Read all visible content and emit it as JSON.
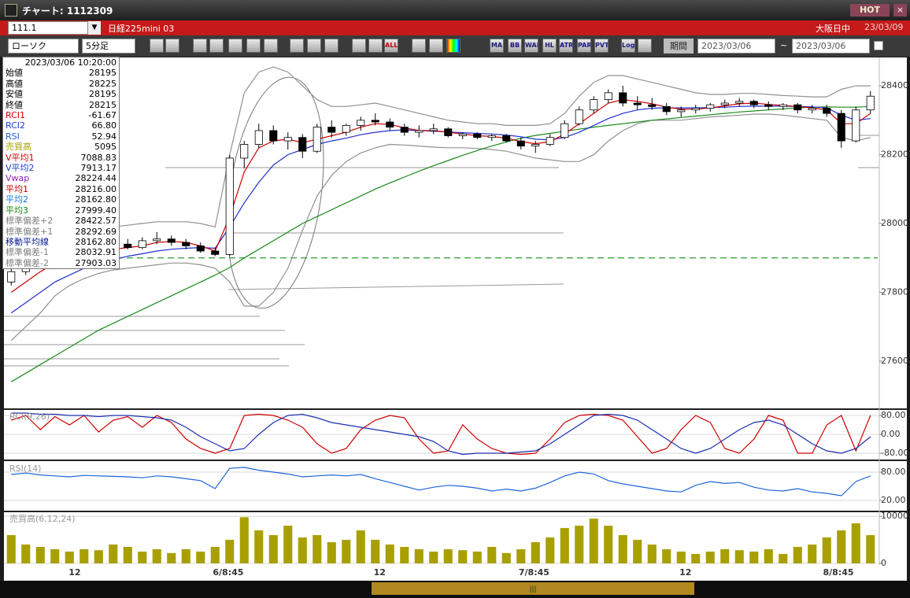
{
  "window": {
    "title": "チャート: 1112309",
    "hot": "HOT",
    "code": "111.1",
    "name": "日経225mini 03",
    "market": "大阪日中",
    "date": "23/03/09"
  },
  "toolbar": {
    "chart_style": "ローソク",
    "interval": "5分足",
    "buttons": [
      "ALL",
      "MA",
      "BB",
      "WAE",
      "HL",
      "ATR",
      "PARA",
      "PVT",
      "Log"
    ],
    "period": "期間",
    "from": "2023/03/06",
    "tilde": "~",
    "to": "2023/03/06"
  },
  "info_panel": {
    "datetime": "2023/03/06  10:20:00",
    "rows": [
      {
        "label": "始値",
        "value": "28195",
        "color": "#000000"
      },
      {
        "label": "高値",
        "value": "28225",
        "color": "#000000"
      },
      {
        "label": "安値",
        "value": "28195",
        "color": "#000000"
      },
      {
        "label": "終値",
        "value": "28215",
        "color": "#000000"
      },
      {
        "label": "RCI1",
        "value": "-61.67",
        "color": "#d00000"
      },
      {
        "label": "RCI2",
        "value": "66.80",
        "color": "#1a3fd0"
      },
      {
        "label": "RSI",
        "value": "52.94",
        "color": "#1e64dc"
      },
      {
        "label": "売買高",
        "value": "5095",
        "color": "#a8a000"
      },
      {
        "label": "V平均1",
        "value": "7088.83",
        "color": "#d00000"
      },
      {
        "label": "V平均2",
        "value": "7913.17",
        "color": "#1a3fd0"
      },
      {
        "label": "Vwap",
        "value": "28224.44",
        "color": "#9020c0"
      },
      {
        "label": "平均1",
        "value": "28216.00",
        "color": "#d00000"
      },
      {
        "label": "平均2",
        "value": "28162.80",
        "color": "#1e78dc"
      },
      {
        "label": "平均3",
        "value": "27999.40",
        "color": "#1a8a1a"
      },
      {
        "label": "標準偏差+2",
        "value": "28422.57",
        "color": "#808080"
      },
      {
        "label": "標準偏差+1",
        "value": "28292.69",
        "color": "#808080"
      },
      {
        "label": "移動平均線",
        "value": "28162.80",
        "color": "#0a1a90"
      },
      {
        "label": "標準偏差-1",
        "value": "28032.91",
        "color": "#808080"
      },
      {
        "label": "標準偏差-2",
        "value": "27903.03",
        "color": "#808080"
      }
    ]
  },
  "chart_data": [
    {
      "type": "candlestick",
      "ylim": [
        27465,
        28478
      ],
      "yticks": [
        28400,
        28200,
        28000,
        27800,
        27600
      ],
      "xticks": [
        {
          "value": 4.36,
          "label": "12"
        },
        {
          "value": 14.9,
          "label": "6/8:45"
        },
        {
          "value": 25.3,
          "label": "12"
        },
        {
          "value": 35.9,
          "label": "7/8:45"
        },
        {
          "value": 46.3,
          "label": "12"
        },
        {
          "value": 56.8,
          "label": "8/8:45"
        }
      ],
      "ohlc": [
        [
          27830,
          27870,
          27820,
          27860
        ],
        [
          27860,
          27890,
          27850,
          27880
        ],
        [
          27880,
          27920,
          27870,
          27910
        ],
        [
          27910,
          27930,
          27900,
          27920
        ],
        [
          27920,
          27940,
          27905,
          27915
        ],
        [
          27915,
          27935,
          27900,
          27930
        ],
        [
          27930,
          27950,
          27920,
          27925
        ],
        [
          27925,
          27945,
          27915,
          27940
        ],
        [
          27940,
          27955,
          27925,
          27930
        ],
        [
          27930,
          27960,
          27925,
          27950
        ],
        [
          27950,
          27975,
          27940,
          27955
        ],
        [
          27955,
          27965,
          27935,
          27945
        ],
        [
          27945,
          27955,
          27925,
          27935
        ],
        [
          27935,
          27945,
          27915,
          27920
        ],
        [
          27920,
          27930,
          27905,
          27910
        ],
        [
          27910,
          28200,
          27905,
          28190
        ],
        [
          28190,
          28240,
          28160,
          28230
        ],
        [
          28230,
          28290,
          28220,
          28270
        ],
        [
          28270,
          28285,
          28230,
          28240
        ],
        [
          28240,
          28265,
          28215,
          28250
        ],
        [
          28250,
          28260,
          28190,
          28210
        ],
        [
          28210,
          28290,
          28205,
          28280
        ],
        [
          28280,
          28300,
          28250,
          28265
        ],
        [
          28265,
          28290,
          28255,
          28285
        ],
        [
          28285,
          28310,
          28270,
          28300
        ],
        [
          28300,
          28320,
          28285,
          28295
        ],
        [
          28295,
          28305,
          28270,
          28280
        ],
        [
          28280,
          28290,
          28255,
          28265
        ],
        [
          28265,
          28285,
          28250,
          28270
        ],
        [
          28270,
          28290,
          28260,
          28275
        ],
        [
          28275,
          28280,
          28250,
          28255
        ],
        [
          28255,
          28265,
          28245,
          28260
        ],
        [
          28260,
          28265,
          28245,
          28250
        ],
        [
          28250,
          28260,
          28240,
          28255
        ],
        [
          28255,
          28260,
          28235,
          28240
        ],
        [
          28240,
          28250,
          28215,
          28225
        ],
        [
          28225,
          28240,
          28205,
          28230
        ],
        [
          28230,
          28260,
          28225,
          28250
        ],
        [
          28250,
          28300,
          28245,
          28290
        ],
        [
          28290,
          28340,
          28285,
          28330
        ],
        [
          28330,
          28370,
          28320,
          28360
        ],
        [
          28360,
          28390,
          28350,
          28380
        ],
        [
          28380,
          28400,
          28340,
          28350
        ],
        [
          28350,
          28370,
          28330,
          28345
        ],
        [
          28345,
          28365,
          28330,
          28340
        ],
        [
          28340,
          28350,
          28315,
          28325
        ],
        [
          28325,
          28340,
          28310,
          28330
        ],
        [
          28330,
          28345,
          28320,
          28335
        ],
        [
          28335,
          28350,
          28325,
          28345
        ],
        [
          28345,
          28360,
          28335,
          28350
        ],
        [
          28350,
          28365,
          28340,
          28355
        ],
        [
          28355,
          28360,
          28335,
          28345
        ],
        [
          28345,
          28355,
          28330,
          28340
        ],
        [
          28340,
          28350,
          28330,
          28345
        ],
        [
          28345,
          28350,
          28320,
          28330
        ],
        [
          28330,
          28345,
          28320,
          28335
        ],
        [
          28335,
          28345,
          28310,
          28320
        ],
        [
          28320,
          28330,
          28220,
          28240
        ],
        [
          28240,
          28340,
          28235,
          28330
        ],
        [
          28330,
          28385,
          28320,
          28370
        ]
      ],
      "series": [
        {
          "color": "#909090",
          "values": [
            27920,
            27950,
            27975,
            27990,
            27990,
            27990,
            27990,
            27990,
            27995,
            28000,
            28005,
            28005,
            28005,
            28000,
            27990,
            28200,
            28380,
            28440,
            28455,
            28440,
            28400,
            28360,
            28340,
            28340,
            28345,
            28350,
            28340,
            28330,
            28320,
            28310,
            28300,
            28295,
            28290,
            28290,
            28285,
            28285,
            28285,
            28290,
            28320,
            28370,
            28410,
            28430,
            28430,
            28420,
            28410,
            28400,
            28390,
            28380,
            28375,
            28375,
            28378,
            28378,
            28375,
            28372,
            28370,
            28368,
            28368,
            28390,
            28400,
            28400
          ]
        },
        {
          "color": "#909090",
          "values": [
            27660,
            27700,
            27740,
            27790,
            27820,
            27840,
            27855,
            27865,
            27870,
            27875,
            27880,
            27885,
            27885,
            27880,
            27870,
            27830,
            27760,
            27760,
            27800,
            27870,
            27980,
            28080,
            28140,
            28180,
            28205,
            28220,
            28230,
            28228,
            28225,
            28222,
            28220,
            28220,
            28218,
            28215,
            28210,
            28200,
            28190,
            28185,
            28180,
            28180,
            28200,
            28240,
            28270,
            28290,
            28300,
            28300,
            28300,
            28305,
            28310,
            28312,
            28315,
            28318,
            28318,
            28315,
            28310,
            28305,
            28300,
            28250,
            28240,
            28250
          ]
        },
        {
          "color": "#1a8a1a",
          "values": [
            27540,
            27565,
            27590,
            27615,
            27640,
            27665,
            27690,
            27710,
            27730,
            27750,
            27770,
            27790,
            27810,
            27830,
            27850,
            27872,
            27900,
            27925,
            27950,
            27975,
            28000,
            28020,
            28040,
            28060,
            28080,
            28100,
            28118,
            28135,
            28152,
            28168,
            28183,
            28198,
            28212,
            28225,
            28237,
            28248,
            28256,
            28262,
            28268,
            28274,
            28280,
            28285,
            28290,
            28295,
            28300,
            28304,
            28308,
            28312,
            28316,
            28320,
            28324,
            28327,
            28330,
            28333,
            28336,
            28338,
            28339,
            28338,
            28338,
            28340
          ]
        },
        {
          "color": "#2030d0",
          "values": [
            27740,
            27770,
            27800,
            27830,
            27850,
            27870,
            27885,
            27895,
            27905,
            27912,
            27920,
            27925,
            27928,
            27930,
            27928,
            27990,
            28060,
            28120,
            28170,
            28200,
            28215,
            28230,
            28240,
            28248,
            28258,
            28265,
            28270,
            28272,
            28270,
            28268,
            28266,
            28264,
            28262,
            28260,
            28257,
            28252,
            28245,
            28243,
            28250,
            28265,
            28285,
            28305,
            28320,
            28330,
            28335,
            28336,
            28336,
            28336,
            28337,
            28338,
            28340,
            28341,
            28341,
            28341,
            28340,
            28339,
            28336,
            28315,
            28300,
            28305
          ]
        },
        {
          "color": "#d00000",
          "values": [
            27800,
            27830,
            27860,
            27885,
            27900,
            27910,
            27915,
            27925,
            27930,
            27935,
            27945,
            27948,
            27945,
            27935,
            27920,
            28020,
            28150,
            28220,
            28240,
            28245,
            28235,
            28245,
            28255,
            28265,
            28280,
            28290,
            28288,
            28278,
            28270,
            28270,
            28265,
            28260,
            28255,
            28253,
            28248,
            28238,
            28232,
            28238,
            28260,
            28290,
            28320,
            28350,
            28360,
            28355,
            28348,
            28338,
            28332,
            28332,
            28336,
            28342,
            28348,
            28350,
            28346,
            28343,
            28340,
            28336,
            28330,
            28290,
            28290,
            28320
          ]
        }
      ],
      "reference_line": 27900,
      "reference_color": "#2e9a2e",
      "grid": false
    },
    {
      "type": "line",
      "title": "RCI(9,26)",
      "ylim": [
        -100,
        100
      ],
      "yticks": [
        {
          "value": 80,
          "label": "80.00"
        },
        {
          "value": 0,
          "label": "0.00"
        },
        {
          "value": -80,
          "label": "-80.00"
        }
      ],
      "grid": true,
      "series": [
        {
          "color": "#d00000",
          "values": [
            60,
            80,
            20,
            75,
            40,
            80,
            10,
            60,
            75,
            30,
            80,
            50,
            -20,
            -60,
            -80,
            -60,
            80,
            85,
            80,
            60,
            30,
            -40,
            -80,
            -60,
            20,
            60,
            80,
            70,
            -20,
            -80,
            -70,
            40,
            -20,
            -60,
            -80,
            -85,
            -80,
            -20,
            50,
            80,
            85,
            80,
            60,
            -10,
            -80,
            -60,
            20,
            80,
            50,
            -60,
            -80,
            -20,
            80,
            60,
            -80,
            -80,
            40,
            80,
            -70,
            80
          ]
        },
        {
          "color": "#1a2fb0",
          "values": [
            90,
            90,
            85,
            85,
            80,
            80,
            75,
            80,
            80,
            75,
            70,
            60,
            30,
            -10,
            -40,
            -70,
            -60,
            0,
            50,
            80,
            85,
            70,
            50,
            40,
            30,
            20,
            10,
            0,
            -10,
            -30,
            -70,
            -85,
            -80,
            -80,
            -80,
            -75,
            -70,
            -40,
            0,
            40,
            80,
            85,
            80,
            60,
            20,
            -20,
            -60,
            -80,
            -60,
            -20,
            20,
            50,
            60,
            40,
            0,
            -40,
            -70,
            -80,
            -60,
            -10
          ]
        }
      ]
    },
    {
      "type": "line",
      "title": "RSI(14)",
      "ylim": [
        0,
        100
      ],
      "yticks": [
        {
          "value": 80,
          "label": "80.00"
        },
        {
          "value": 20,
          "label": "20.00"
        }
      ],
      "grid": true,
      "series": [
        {
          "color": "#1e64dc",
          "values": [
            75,
            78,
            74,
            72,
            70,
            73,
            72,
            71,
            70,
            68,
            72,
            70,
            66,
            62,
            45,
            88,
            90,
            84,
            80,
            76,
            70,
            72,
            74,
            72,
            75,
            66,
            58,
            50,
            42,
            48,
            52,
            50,
            46,
            40,
            44,
            40,
            46,
            58,
            72,
            80,
            76,
            62,
            55,
            50,
            45,
            40,
            38,
            52,
            60,
            56,
            58,
            48,
            42,
            40,
            45,
            38,
            35,
            30,
            60,
            72
          ]
        }
      ]
    },
    {
      "type": "bar",
      "title": "売買高(6,12,24)",
      "ylim": [
        0,
        10690
      ],
      "yticks": [
        10000,
        0
      ],
      "grid": true,
      "color": "#a8a000",
      "values": [
        6000,
        4000,
        3500,
        3000,
        2500,
        3000,
        2800,
        4000,
        3500,
        2500,
        3000,
        2200,
        3000,
        2500,
        3500,
        5000,
        9800,
        7000,
        6000,
        8000,
        5500,
        6000,
        4500,
        5000,
        7000,
        5000,
        4000,
        3500,
        3000,
        2500,
        3000,
        2800,
        2500,
        3500,
        2200,
        3000,
        4500,
        5500,
        7500,
        8000,
        9500,
        8000,
        6000,
        5000,
        4000,
        3000,
        2500,
        2000,
        2500,
        3000,
        2800,
        2500,
        3000,
        2000,
        3500,
        4000,
        5500,
        7000,
        8500,
        6000
      ]
    }
  ]
}
